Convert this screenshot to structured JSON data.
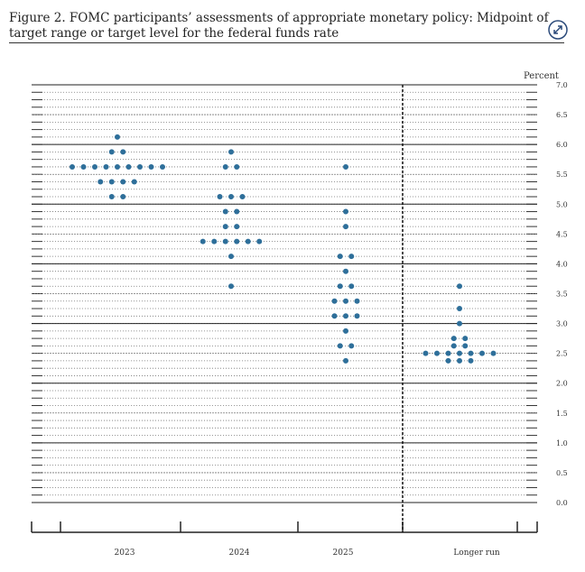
{
  "chart_data": {
    "type": "dot",
    "title": "Figure 2.  FOMC participants’ assessments of appropriate monetary policy: Midpoint of target range or target level for the federal funds rate",
    "y_label": "Percent",
    "categories": [
      "2023",
      "2024",
      "2025",
      "Longer run"
    ],
    "color": "#2e6f9a",
    "values": [
      [
        6.125,
        5.875,
        5.875,
        5.625,
        5.625,
        5.625,
        5.625,
        5.625,
        5.625,
        5.625,
        5.625,
        5.625,
        5.375,
        5.375,
        5.375,
        5.375,
        5.125,
        5.125
      ],
      [
        5.875,
        5.625,
        5.625,
        5.125,
        5.125,
        5.125,
        4.875,
        4.875,
        4.625,
        4.625,
        4.375,
        4.375,
        4.375,
        4.375,
        4.375,
        4.375,
        4.125,
        3.625
      ],
      [
        5.625,
        4.875,
        4.625,
        4.125,
        4.125,
        3.875,
        3.625,
        3.625,
        3.375,
        3.375,
        3.375,
        3.125,
        3.125,
        3.125,
        2.875,
        2.625,
        2.625,
        2.375
      ],
      [
        3.625,
        3.25,
        3.0,
        2.75,
        2.75,
        2.625,
        2.625,
        2.5,
        2.5,
        2.5,
        2.5,
        2.5,
        2.5,
        2.5,
        2.375,
        2.375,
        2.375
      ]
    ],
    "ylim": [
      0,
      7
    ],
    "yticks": [
      {
        "value": 0,
        "label": "0.0"
      },
      0.5,
      {
        "value": 1,
        "label": "1.0"
      },
      1.5,
      {
        "value": 2,
        "label": "2.0"
      },
      2.5,
      {
        "value": 3,
        "label": "3.0"
      },
      3.5,
      {
        "value": 4,
        "label": "4.0"
      },
      4.5,
      {
        "value": 5,
        "label": "5.0"
      },
      5.5,
      {
        "value": 6,
        "label": "6.0"
      },
      6.5,
      {
        "value": 7,
        "label": "7.0"
      }
    ]
  }
}
